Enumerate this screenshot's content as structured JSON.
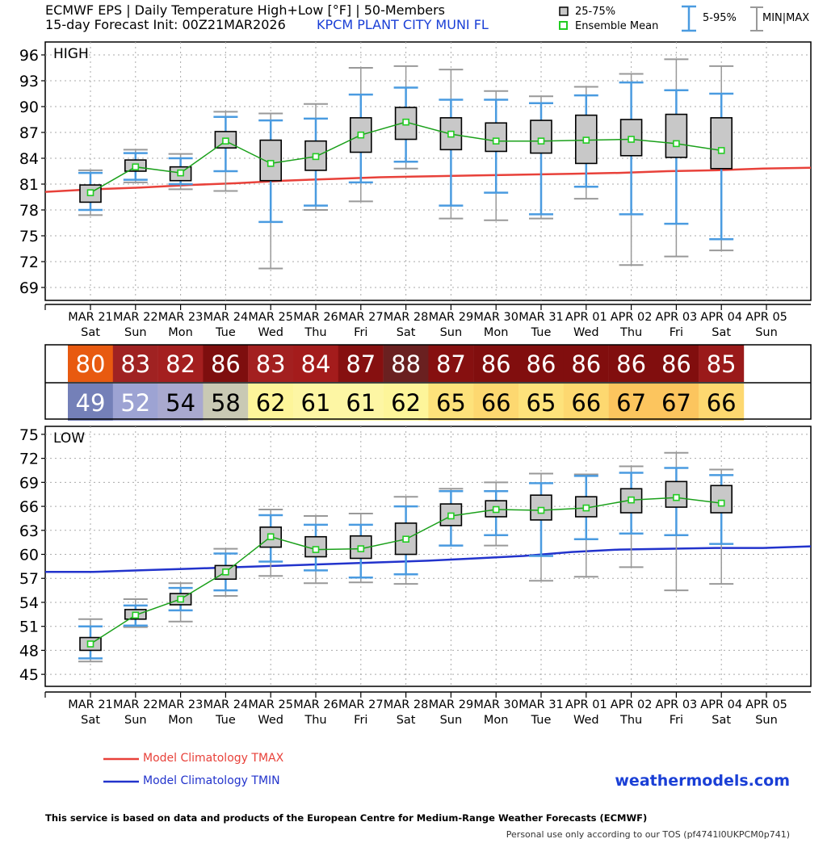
{
  "header": {
    "title": "ECMWF EPS | Daily Temperature High+Low [°F] | 50-Members",
    "subtitle": "15-day Forecast Init: 00Z21MAR2026",
    "station": "KPCM  PLANT CITY MUNI FL"
  },
  "legend": {
    "box_label": "25-75%",
    "mean_label": "Ensemble Mean",
    "whisker_label": "5-95%",
    "minmax_label": "MIN|MAX"
  },
  "footer": {
    "tmax_clim_label": "Model Climatology TMAX",
    "tmin_clim_label": "Model Climatology TMIN",
    "brand": "weathermodels.com",
    "disclaimer": "This service is based on data and products of the European Centre for Medium-Range Weather Forecasts (ECMWF)",
    "tos": "Personal use only according to our TOS (pf4741I0UKPCM0p741)"
  },
  "colors": {
    "clim_tmax": "#e8413a",
    "clim_tmin": "#2233cc",
    "whisker": "#4a9be0",
    "minmax": "#999999",
    "box_fill": "#c8c8c8",
    "mean": "#1aa01a",
    "mean_marker": "#22cc22"
  },
  "chart_data": [
    {
      "type": "box",
      "title": "HIGH",
      "ylim": [
        67.5,
        97.5
      ],
      "yticks": [
        69,
        72,
        75,
        78,
        81,
        84,
        87,
        90,
        93,
        96
      ],
      "grid": true,
      "categories": [
        "MAR 21",
        "MAR 22",
        "MAR 23",
        "MAR 24",
        "MAR 25",
        "MAR 26",
        "MAR 27",
        "MAR 28",
        "MAR 29",
        "MAR 30",
        "MAR 31",
        "APR 01",
        "APR 02",
        "APR 03",
        "APR 04",
        "APR 05"
      ],
      "weekdays": [
        "Sat",
        "Sun",
        "Mon",
        "Tue",
        "Wed",
        "Thu",
        "Fri",
        "Sat",
        "Sun",
        "Mon",
        "Tue",
        "Wed",
        "Thu",
        "Fri",
        "Sat",
        "Sun"
      ],
      "series": [
        {
          "name": "MIN|MAX",
          "min": [
            77.4,
            81.2,
            80.4,
            80.2,
            71.2,
            78.0,
            79.0,
            82.8,
            77.0,
            76.8,
            77.0,
            79.3,
            71.6,
            72.6,
            73.3
          ],
          "max": [
            82.6,
            85.0,
            84.5,
            89.4,
            89.2,
            90.3,
            94.5,
            94.7,
            94.3,
            91.8,
            91.2,
            92.3,
            93.8,
            95.5,
            94.7
          ]
        },
        {
          "name": "5-95%",
          "p5": [
            78.0,
            81.5,
            81.0,
            82.5,
            76.6,
            78.5,
            81.2,
            83.6,
            78.5,
            80.0,
            77.5,
            80.7,
            77.5,
            76.4,
            74.6
          ],
          "p95": [
            82.3,
            84.6,
            84.0,
            88.8,
            88.4,
            88.6,
            91.4,
            92.2,
            90.8,
            90.8,
            90.4,
            91.3,
            92.8,
            91.9,
            91.5
          ]
        },
        {
          "name": "25-75%",
          "q1": [
            78.9,
            82.5,
            81.4,
            85.2,
            81.4,
            82.6,
            84.7,
            86.2,
            85.0,
            84.8,
            84.6,
            83.4,
            84.3,
            84.1,
            82.8
          ],
          "q3": [
            80.9,
            83.8,
            83.0,
            87.1,
            86.1,
            86.0,
            88.7,
            89.9,
            88.7,
            88.1,
            88.4,
            89.0,
            88.5,
            89.1,
            88.7
          ]
        },
        {
          "name": "Ensemble Mean",
          "values": [
            80.0,
            83.0,
            82.3,
            86.0,
            83.4,
            84.2,
            86.7,
            88.2,
            86.8,
            86.0,
            86.0,
            86.1,
            86.2,
            85.7,
            84.9
          ]
        },
        {
          "name": "Model Climatology TMAX",
          "values": [
            80.1,
            80.4,
            80.6,
            80.9,
            81.1,
            81.4,
            81.6,
            81.8,
            81.9,
            82.0,
            82.1,
            82.2,
            82.3,
            82.5,
            82.6,
            82.8,
            82.9
          ]
        }
      ]
    },
    {
      "type": "box",
      "title": "LOW",
      "ylim": [
        43.5,
        76
      ],
      "yticks": [
        45,
        48,
        51,
        54,
        57,
        60,
        63,
        66,
        69,
        72,
        75
      ],
      "grid": true,
      "categories": [
        "MAR 21",
        "MAR 22",
        "MAR 23",
        "MAR 24",
        "MAR 25",
        "MAR 26",
        "MAR 27",
        "MAR 28",
        "MAR 29",
        "MAR 30",
        "MAR 31",
        "APR 01",
        "APR 02",
        "APR 03",
        "APR 04",
        "APR 05"
      ],
      "weekdays": [
        "Sat",
        "Sun",
        "Mon",
        "Tue",
        "Wed",
        "Thu",
        "Fri",
        "Sat",
        "Sun",
        "Mon",
        "Tue",
        "Wed",
        "Thu",
        "Fri",
        "Sat",
        "Sun"
      ],
      "series": [
        {
          "name": "MIN|MAX",
          "min": [
            46.6,
            50.9,
            51.6,
            54.8,
            57.3,
            56.4,
            56.5,
            56.3,
            61.1,
            61.1,
            56.7,
            57.2,
            58.4,
            55.5,
            56.3
          ],
          "max": [
            51.9,
            54.4,
            56.4,
            60.7,
            65.6,
            64.8,
            65.1,
            67.2,
            68.2,
            69.0,
            70.1,
            70.0,
            71.0,
            72.7,
            70.6
          ]
        },
        {
          "name": "5-95%",
          "p5": [
            47.0,
            51.1,
            53.0,
            55.5,
            59.1,
            58.0,
            57.1,
            57.5,
            61.1,
            62.4,
            59.8,
            61.9,
            62.6,
            62.4,
            61.3
          ],
          "p95": [
            51.0,
            53.6,
            55.8,
            60.1,
            64.9,
            63.7,
            63.7,
            66.0,
            67.9,
            67.9,
            68.9,
            69.8,
            70.2,
            70.8,
            69.9
          ]
        },
        {
          "name": "25-75%",
          "q1": [
            48.0,
            51.9,
            53.7,
            56.9,
            60.9,
            59.7,
            59.5,
            60.0,
            63.6,
            64.7,
            64.3,
            64.7,
            65.2,
            65.9,
            65.2
          ],
          "q3": [
            49.6,
            53.1,
            55.1,
            58.6,
            63.4,
            62.2,
            62.3,
            63.9,
            66.3,
            66.7,
            67.4,
            67.2,
            68.2,
            69.1,
            68.6
          ]
        },
        {
          "name": "Ensemble Mean",
          "values": [
            48.8,
            52.4,
            54.4,
            57.8,
            62.2,
            60.6,
            60.7,
            61.9,
            64.8,
            65.6,
            65.5,
            65.8,
            66.8,
            67.1,
            66.4
          ]
        },
        {
          "name": "Model Climatology TMIN",
          "values": [
            57.8,
            57.8,
            58.0,
            58.2,
            58.4,
            58.6,
            58.8,
            59.0,
            59.2,
            59.5,
            59.8,
            60.3,
            60.6,
            60.7,
            60.8,
            60.8,
            61.0
          ]
        }
      ]
    },
    {
      "type": "table",
      "rows": [
        {
          "name": "HIGH",
          "values": [
            80,
            83,
            82,
            86,
            83,
            84,
            87,
            88,
            87,
            86,
            86,
            86,
            86,
            86,
            85
          ],
          "colors": [
            "#e85a10",
            "#a02222",
            "#a41f1f",
            "#7e0e0e",
            "#a32020",
            "#a41c1c",
            "#861010",
            "#6a2020",
            "#861010",
            "#810e0e",
            "#810e0e",
            "#810e0e",
            "#810e0e",
            "#810e0e",
            "#9a1a1a"
          ]
        },
        {
          "name": "LOW",
          "values": [
            49,
            52,
            54,
            58,
            62,
            61,
            61,
            62,
            65,
            66,
            65,
            66,
            67,
            67,
            66
          ],
          "colors": [
            "#7480b8",
            "#9da3d3",
            "#a9a9cf",
            "#c9c9b4",
            "#fdf59a",
            "#fdf6a4",
            "#fdf6a4",
            "#fdf59a",
            "#fde27b",
            "#fdd870",
            "#fde27b",
            "#fdd870",
            "#fcc55e",
            "#fcc55e",
            "#fdd870"
          ]
        }
      ]
    }
  ]
}
